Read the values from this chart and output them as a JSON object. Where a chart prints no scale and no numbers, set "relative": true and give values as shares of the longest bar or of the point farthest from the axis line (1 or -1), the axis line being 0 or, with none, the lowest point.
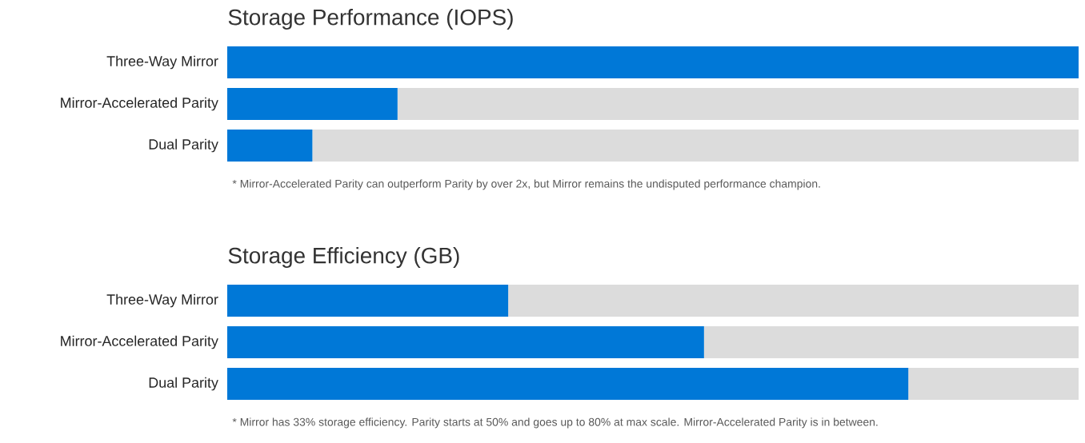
{
  "chart_data": [
    {
      "type": "bar",
      "orientation": "horizontal",
      "stacked": true,
      "relative": true,
      "tick_labels": "y",
      "title": "Storage Performance (IOPS)",
      "categories": [
        "Three-Way Mirror",
        "Mirror-Accelerated Parity",
        "Dual Parity"
      ],
      "series": [
        {
          "color": "#0078d7",
          "values": [
            1,
            0.2,
            0.1
          ]
        },
        {
          "color": "#dcdcdc",
          "values": [
            0,
            0.8,
            0.9
          ]
        }
      ],
      "annotations": [
        "* Mirror-Accelerated Parity can outperform Parity by over 2x, but Mirror remains the undisputed performance champion."
      ]
    },
    {
      "type": "bar",
      "orientation": "horizontal",
      "stacked": true,
      "relative": true,
      "tick_labels": "y",
      "title": "Storage Efficiency (GB)",
      "categories": [
        "Three-Way Mirror",
        "Mirror-Accelerated Parity",
        "Dual Parity"
      ],
      "series": [
        {
          "color": "#0078d7",
          "values": [
            0.33,
            0.56,
            0.8
          ]
        },
        {
          "color": "#dcdcdc",
          "values": [
            0.67,
            0.44,
            0.2
          ]
        }
      ],
      "annotations": [
        "* Mirror has 33% storage efficiency. Parity starts at 50% and goes up to 80% at max scale. Mirror-Accelerated Parity is in between."
      ]
    }
  ]
}
